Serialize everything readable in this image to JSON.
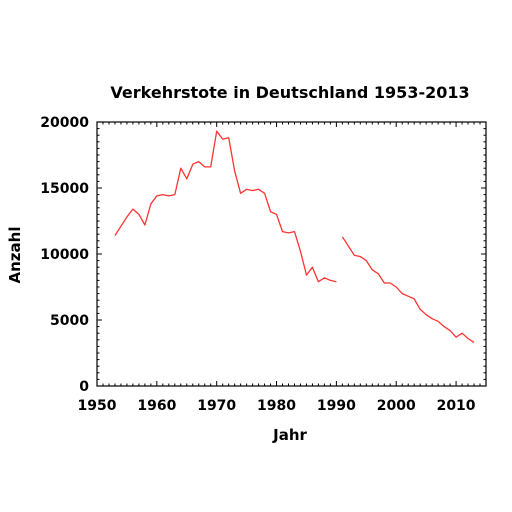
{
  "chart_data": {
    "type": "line",
    "title": "Verkehrstote in Deutschland 1953-2013",
    "xlabel": "Jahr",
    "ylabel": "Anzahl",
    "xlim": [
      1950,
      2015
    ],
    "ylim": [
      0,
      20000
    ],
    "x_ticks": [
      "1950",
      "1960",
      "1970",
      "1980",
      "1990",
      "2000",
      "2010"
    ],
    "y_ticks": [
      "0",
      "5000",
      "10000",
      "15000",
      "20000"
    ],
    "grid": false,
    "color": "#ff3333",
    "segments": [
      {
        "x": [
          1953,
          1954,
          1955,
          1956,
          1957,
          1958,
          1959,
          1960,
          1961,
          1962,
          1963,
          1964,
          1965,
          1966,
          1967,
          1968,
          1969,
          1970,
          1971,
          1972,
          1973,
          1974,
          1975,
          1976,
          1977,
          1978,
          1979,
          1980,
          1981,
          1982,
          1983,
          1984,
          1985,
          1986,
          1987,
          1988,
          1989,
          1990
        ],
        "y": [
          11400,
          12100,
          12800,
          13400,
          13000,
          12200,
          13800,
          14400,
          14500,
          14400,
          14500,
          16500,
          15700,
          16800,
          17000,
          16600,
          16600,
          19300,
          18700,
          18800,
          16300,
          14600,
          14900,
          14800,
          14900,
          14600,
          13200,
          13000,
          11700,
          11600,
          11700,
          10200,
          8400,
          9000,
          7900,
          8200,
          8000,
          7900
        ]
      },
      {
        "x": [
          1991,
          1992,
          1993,
          1994,
          1995,
          1996,
          1997,
          1998,
          1999,
          2000,
          2001,
          2002,
          2003,
          2004,
          2005,
          2006,
          2007,
          2008,
          2009,
          2010,
          2011,
          2012,
          2013
        ],
        "y": [
          11300,
          10600,
          9900,
          9800,
          9500,
          8800,
          8500,
          7800,
          7800,
          7500,
          7000,
          6800,
          6600,
          5800,
          5400,
          5100,
          4900,
          4500,
          4200,
          3700,
          4000,
          3600,
          3300
        ]
      }
    ]
  }
}
